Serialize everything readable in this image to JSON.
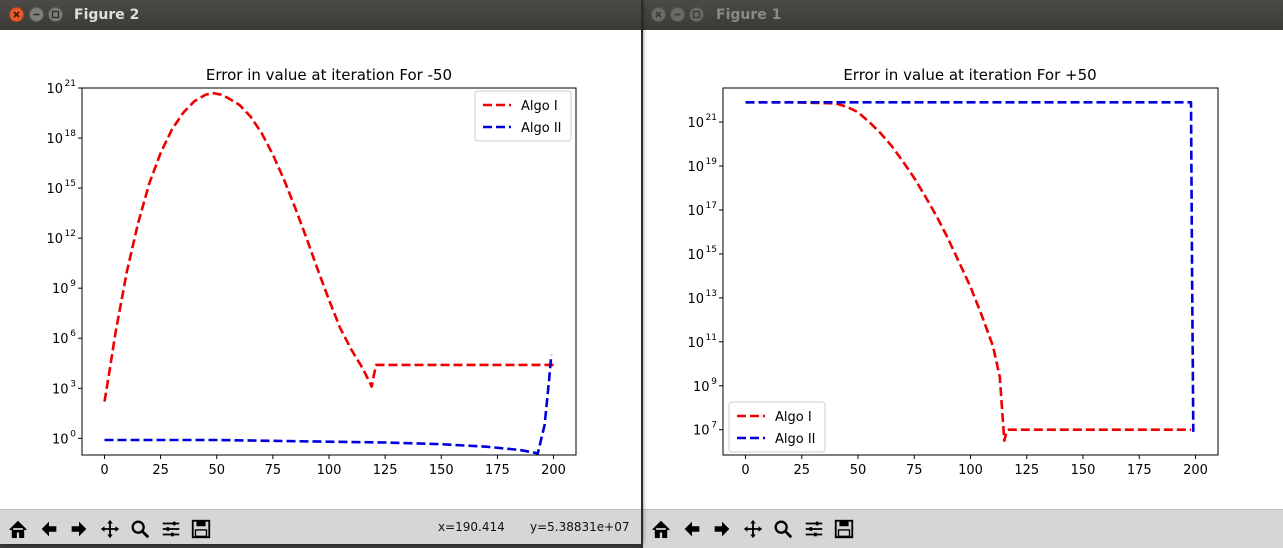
{
  "windows": [
    {
      "id": "figure-2",
      "title": "Figure 2",
      "active": true,
      "coords": {
        "x": "x=190.414",
        "y": "y=5.38831e+07"
      }
    },
    {
      "id": "figure-1",
      "title": "Figure 1",
      "active": false
    }
  ],
  "toolbar_icons": [
    "home-icon",
    "back-arrow-icon",
    "forward-arrow-icon",
    "pan-icon",
    "zoom-icon",
    "configure-subplots-icon",
    "save-icon"
  ],
  "colors": {
    "algo1": "#ee0000",
    "algo2": "#0000dd"
  },
  "chart_data": [
    {
      "type": "line",
      "title": "Error in value at iteration For -50",
      "xlabel": "",
      "ylabel": "",
      "yscale": "log",
      "xlim": [
        -10,
        210
      ],
      "ylim_log10": [
        -1,
        21
      ],
      "xticks": [
        "0",
        "25",
        "50",
        "75",
        "100",
        "125",
        "150",
        "175",
        "200"
      ],
      "yticks": [
        {
          "base": "10",
          "exp": "0"
        },
        {
          "base": "10",
          "exp": "3"
        },
        {
          "base": "10",
          "exp": "6"
        },
        {
          "base": "10",
          "exp": "9"
        },
        {
          "base": "10",
          "exp": "12"
        },
        {
          "base": "10",
          "exp": "15"
        },
        {
          "base": "10",
          "exp": "18"
        },
        {
          "base": "10",
          "exp": "21"
        }
      ],
      "legend": "top-right",
      "series": [
        {
          "name": "Algo I",
          "color": "#ee0000",
          "x": [
            0,
            2,
            5,
            10,
            15,
            20,
            25,
            30,
            35,
            40,
            45,
            48,
            52,
            55,
            60,
            65,
            70,
            75,
            80,
            85,
            90,
            95,
            100,
            105,
            110,
            115,
            119,
            120,
            121,
            122,
            150,
            175,
            200
          ],
          "log10y": [
            2.2,
            3.8,
            6.4,
            10.0,
            12.9,
            15.3,
            17.1,
            18.5,
            19.5,
            20.2,
            20.6,
            20.7,
            20.6,
            20.4,
            20.0,
            19.3,
            18.3,
            17.0,
            15.5,
            13.8,
            12.0,
            10.1,
            8.3,
            6.6,
            5.3,
            4.2,
            3.1,
            3.8,
            4.4,
            4.4,
            4.4,
            4.4,
            4.4
          ]
        },
        {
          "name": "Algo II",
          "color": "#0000dd",
          "x": [
            0,
            50,
            100,
            125,
            150,
            170,
            185,
            193,
            196,
            198,
            199
          ],
          "log10y": [
            -0.1,
            -0.1,
            -0.2,
            -0.25,
            -0.35,
            -0.5,
            -0.7,
            -0.9,
            0.8,
            3.5,
            5.0
          ]
        }
      ]
    },
    {
      "type": "line",
      "title": "Error in value at iteration For +50",
      "xlabel": "",
      "ylabel": "",
      "yscale": "log",
      "xlim": [
        -10,
        210
      ],
      "ylim_log10": [
        5.85,
        22.55
      ],
      "xticks": [
        "0",
        "25",
        "50",
        "75",
        "100",
        "125",
        "150",
        "175",
        "200"
      ],
      "yticks": [
        {
          "base": "10",
          "exp": "7"
        },
        {
          "base": "10",
          "exp": "9"
        },
        {
          "base": "10",
          "exp": "11"
        },
        {
          "base": "10",
          "exp": "13"
        },
        {
          "base": "10",
          "exp": "15"
        },
        {
          "base": "10",
          "exp": "17"
        },
        {
          "base": "10",
          "exp": "19"
        },
        {
          "base": "10",
          "exp": "21"
        }
      ],
      "legend": "bottom-left",
      "series": [
        {
          "name": "Algo I",
          "color": "#ee0000",
          "x": [
            0,
            20,
            40,
            45,
            50,
            55,
            60,
            65,
            70,
            75,
            80,
            85,
            90,
            95,
            100,
            105,
            110,
            113,
            115,
            116,
            117,
            150,
            175,
            198
          ],
          "log10y": [
            21.9,
            21.9,
            21.85,
            21.7,
            21.45,
            21.0,
            20.5,
            19.9,
            19.2,
            18.45,
            17.6,
            16.7,
            15.7,
            14.6,
            13.5,
            12.2,
            10.8,
            9.4,
            6.5,
            6.9,
            7.0,
            7.0,
            7.0,
            7.0
          ]
        },
        {
          "name": "Algo II",
          "color": "#0000dd",
          "x": [
            0,
            100,
            198,
            198.5,
            199
          ],
          "log10y": [
            21.9,
            21.9,
            21.9,
            14.0,
            6.9
          ]
        }
      ]
    }
  ]
}
